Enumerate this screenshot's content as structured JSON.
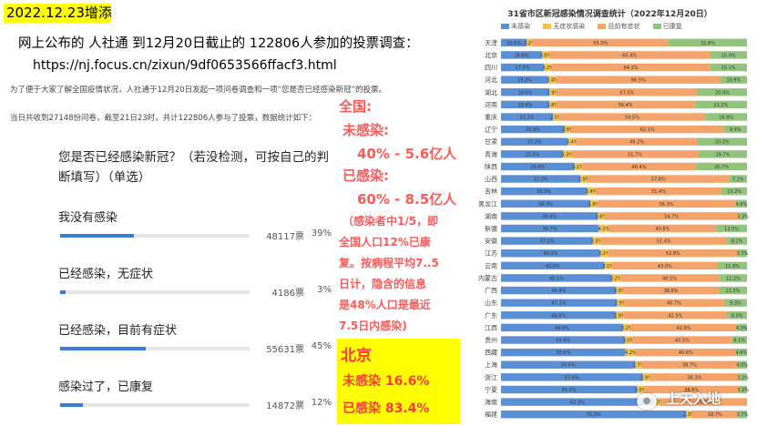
{
  "header": {
    "date_tag": "2022.12.23增添",
    "headline": "网上公布的 人社通 到12月20日截止的 122806人参加的投票调查：",
    "url": "https://nj.focus.cn/zixun/9df0653566ffacf3.html"
  },
  "article": {
    "intro": "为了便于大家了解全国疫情状况，人社通于12月20日发起一项问卷调查和一项“您是否已经感染新冠”的投票。",
    "stat_line": "当日共收到27148份问卷，截至21日23时，共计122806人参与了投票，数据统计如下："
  },
  "survey": {
    "question": "您是否已经感染新冠？（若没检测，可按自己的判断填写）（单选）",
    "accent_color": "#3a7bd5",
    "options": [
      {
        "label": "我没有感染",
        "count": "48117票",
        "pct": "39%",
        "value": 39
      },
      {
        "label": "已经感染，无症状",
        "count": "4186票",
        "pct": "3%",
        "value": 3
      },
      {
        "label": "已经感染，目前有症状",
        "count": "55631票",
        "pct": "45%",
        "value": 45
      },
      {
        "label": "感染过了，已康复",
        "count": "14872票",
        "pct": "12%",
        "value": 12
      }
    ]
  },
  "analysis": {
    "national_label": "全国:",
    "uninfected_label": "未感染:",
    "uninfected_value": "40% - 5.6亿人",
    "infected_label": "已感染:",
    "infected_value": "60%  - 8.5亿人",
    "note_lines": [
      "（感染者中1/5，即",
      "全国人口12%已康",
      "复。按病程平均7..5",
      "日计，隐含的信息",
      "是48%人口是最近",
      "7.5日内感染)"
    ],
    "beijing_label": "北京",
    "beijing_uninfected": "未感染 16.6%",
    "beijing_infected": "已感染 83.4%"
  },
  "chart_data": {
    "type": "bar",
    "orientation": "horizontal",
    "stacked": true,
    "title": "31省市区新冠感染情况调查统计（2022年12月20日）",
    "legend": [
      "未感染",
      "无症状感染",
      "目前有症状",
      "已康复"
    ],
    "colors": [
      "#5b8fd4",
      "#f2c14e",
      "#f4a46a",
      "#93c47d"
    ],
    "xlim": [
      0,
      100
    ],
    "categories": [
      "天津",
      "北京",
      "四川",
      "河北",
      "湖北",
      "河南",
      "重庆",
      "辽宁",
      "甘肃",
      "青海",
      "陕西",
      "山西",
      "吉林",
      "黑龙江",
      "湖南",
      "新疆",
      "安徽",
      "江苏",
      "云南",
      "内蒙古",
      "广西",
      "山东",
      "广东",
      "江西",
      "贵州",
      "西藏",
      "上海",
      "浙江",
      "宁夏",
      "海南",
      "福建"
    ],
    "series": [
      {
        "name": "未感染",
        "values": [
          10.5,
          16.6,
          17.5,
          19.2,
          19.6,
          19.6,
          21.1,
          25.9,
          27.2,
          25.3,
          29.8,
          32.3,
          35.0,
          36.3,
          39.4,
          39.7,
          37.2,
          40.3,
          42.0,
          45.1,
          46.9,
          47.1,
          46.8,
          49.6,
          50.4,
          50.6,
          54.6,
          57.6,
          55.2,
          62.3,
          75.3
        ]
      },
      {
        "name": "无症状感染",
        "values": [
          2.2,
          3.0,
          3.2,
          3.4,
          2.9,
          2.8,
          2.5,
          2.6,
          3.4,
          3.3,
          3.1,
          2.9,
          3.4,
          2.8,
          2.6,
          4.2,
          3.3,
          3.2,
          3.1,
          3.2,
          2.8,
          2.9,
          2.9,
          3.2,
          3.0,
          4.2,
          2.7,
          2.9,
          3.0,
          2.5,
          2.3
        ]
      },
      {
        "name": "目前有症状",
        "values": [
          55.5,
          65.4,
          64.2,
          66.5,
          57.5,
          56.4,
          59.5,
          62.1,
          49.2,
          51.7,
          46.4,
          57.6,
          51.4,
          56.3,
          54.7,
          43.6,
          51.4,
          52.8,
          43.0,
          40.5,
          38.8,
          40.7,
          42.3,
          42.9,
          40.5,
          40.6,
          38.7,
          36.3,
          38.6,
          35.2,
          18.7
        ]
      },
      {
        "name": "已康复",
        "values": [
          31.8,
          15.0,
          15.1,
          10.9,
          20.0,
          21.2,
          16.9,
          9.4,
          20.2,
          19.7,
          20.7,
          7.2,
          10.2,
          4.6,
          3.3,
          12.5,
          8.1,
          3.7,
          11.9,
          11.2,
          11.5,
          9.3,
          8.0,
          4.3,
          6.1,
          4.6,
          4.0,
          3.2,
          3.2,
          0.0,
          3.7
        ]
      }
    ]
  },
  "watermark": "上天入地"
}
